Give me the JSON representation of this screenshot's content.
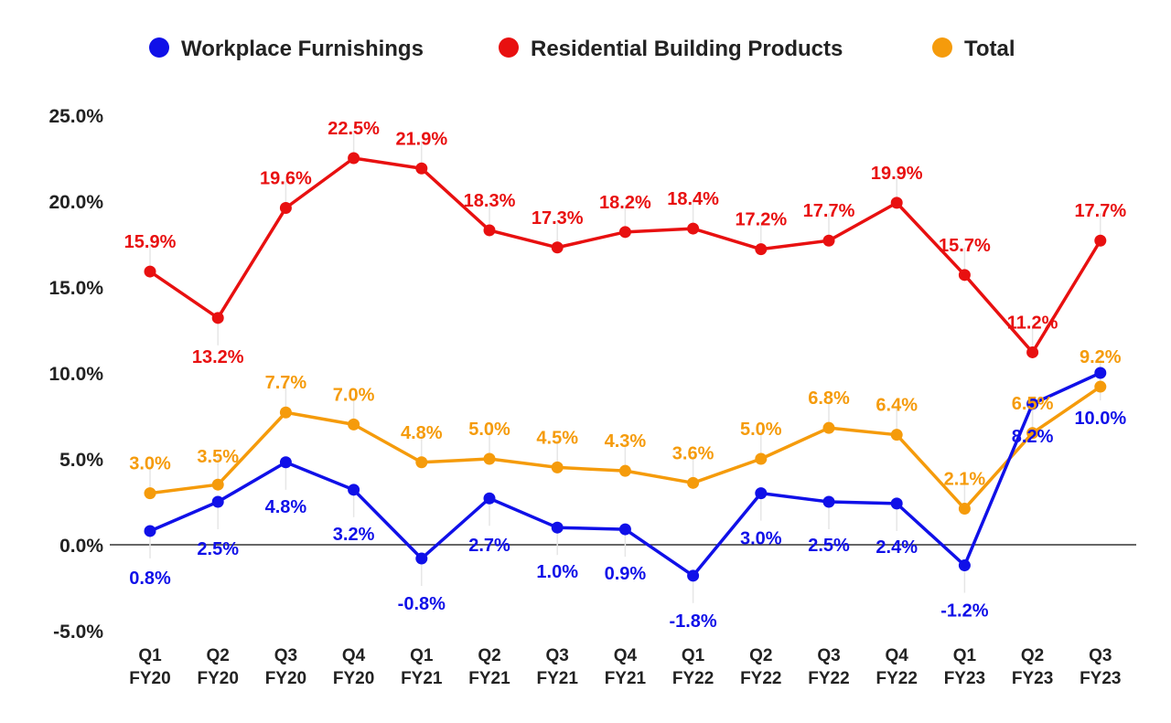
{
  "chart_data": {
    "type": "line",
    "categories": [
      [
        "Q1",
        "FY20"
      ],
      [
        "Q2",
        "FY20"
      ],
      [
        "Q3",
        "FY20"
      ],
      [
        "Q4",
        "FY20"
      ],
      [
        "Q1",
        "FY21"
      ],
      [
        "Q2",
        "FY21"
      ],
      [
        "Q3",
        "FY21"
      ],
      [
        "Q4",
        "FY21"
      ],
      [
        "Q1",
        "FY22"
      ],
      [
        "Q2",
        "FY22"
      ],
      [
        "Q3",
        "FY22"
      ],
      [
        "Q4",
        "FY22"
      ],
      [
        "Q1",
        "FY23"
      ],
      [
        "Q2",
        "FY23"
      ],
      [
        "Q3",
        "FY23"
      ]
    ],
    "series": [
      {
        "name": "Workplace Furnishings",
        "color": "#1010e8",
        "values": [
          0.8,
          2.5,
          4.8,
          3.2,
          -0.8,
          2.7,
          1.0,
          0.9,
          -1.8,
          3.0,
          2.5,
          2.4,
          -1.2,
          8.2,
          10.0
        ],
        "labels": [
          "0.8%",
          "2.5%",
          "4.8%",
          "3.2%",
          "-0.8%",
          "2.7%",
          "1.0%",
          "0.9%",
          "-1.8%",
          "3.0%",
          "2.5%",
          "2.4%",
          "-1.2%",
          "8.2%",
          "10.0%"
        ]
      },
      {
        "name": "Residential Building Products",
        "color": "#e81010",
        "values": [
          15.9,
          13.2,
          19.6,
          22.5,
          21.9,
          18.3,
          17.3,
          18.2,
          18.4,
          17.2,
          17.7,
          19.9,
          15.7,
          11.2,
          17.7
        ],
        "labels": [
          "15.9%",
          "13.2%",
          "19.6%",
          "22.5%",
          "21.9%",
          "18.3%",
          "17.3%",
          "18.2%",
          "18.4%",
          "17.2%",
          "17.7%",
          "19.9%",
          "15.7%",
          "11.2%",
          "17.7%"
        ]
      },
      {
        "name": "Total",
        "color": "#f59b0b",
        "values": [
          3.0,
          3.5,
          7.7,
          7.0,
          4.8,
          5.0,
          4.5,
          4.3,
          3.6,
          5.0,
          6.8,
          6.4,
          2.1,
          6.5,
          9.2
        ],
        "labels": [
          "3.0%",
          "3.5%",
          "7.7%",
          "7.0%",
          "4.8%",
          "5.0%",
          "4.5%",
          "4.3%",
          "3.6%",
          "5.0%",
          "6.8%",
          "6.4%",
          "2.1%",
          "6.5%",
          "9.2%"
        ]
      }
    ],
    "y_ticks": [
      "25.0%",
      "20.0%",
      "15.0%",
      "10.0%",
      "5.0%",
      "0.0%",
      "-5.0%"
    ],
    "ylim": [
      -5,
      25
    ],
    "legend_position": "top-center",
    "grid": false
  }
}
